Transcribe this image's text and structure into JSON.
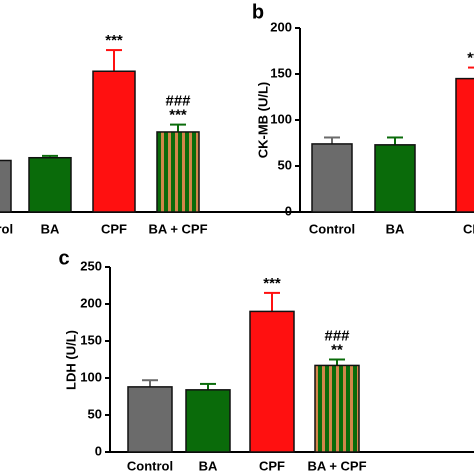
{
  "chart_data": [
    {
      "type": "bar",
      "categories": [
        "Control",
        "BA",
        "CPF",
        "BA + CPF"
      ],
      "values": [
        56,
        59,
        153,
        87
      ],
      "errors": [
        0,
        2,
        23,
        8
      ],
      "colors": [
        "#6b6b6b",
        "#0a6b0a",
        "#ff1010",
        "#0a6b0a"
      ],
      "hatch_color": "#d2864a",
      "hatched": [
        false,
        false,
        false,
        true
      ],
      "annotations": [
        null,
        null,
        [
          "***"
        ],
        [
          "###",
          "***"
        ]
      ],
      "ylim": [
        0,
        200
      ]
    },
    {
      "type": "bar",
      "panel_label": "b",
      "y_label": "CK-MB (U/L)",
      "categories": [
        "Control",
        "BA",
        "CPF"
      ],
      "values": [
        74,
        73,
        145
      ],
      "errors": [
        7,
        8,
        12
      ],
      "colors": [
        "#6b6b6b",
        "#0a6b0a",
        "#ff1010"
      ],
      "annotations": [
        null,
        null,
        [
          "***"
        ]
      ],
      "ylim": [
        0,
        200
      ],
      "yticks": [
        0,
        50,
        100,
        150,
        200
      ]
    },
    {
      "type": "bar",
      "panel_label": "c",
      "y_label": "LDH (U/L)",
      "categories": [
        "Control",
        "BA",
        "CPF",
        "BA + CPF"
      ],
      "values": [
        88,
        84,
        190,
        117
      ],
      "errors": [
        9,
        8,
        25,
        8
      ],
      "colors": [
        "#6b6b6b",
        "#0a6b0a",
        "#ff1010",
        "#0a6b0a"
      ],
      "hatch_color": "#d2864a",
      "hatched": [
        false,
        false,
        false,
        true
      ],
      "annotations": [
        null,
        null,
        [
          "***"
        ],
        [
          "###",
          "**"
        ]
      ],
      "ylim": [
        0,
        250
      ],
      "yticks": [
        0,
        50,
        100,
        150,
        200,
        250
      ]
    }
  ]
}
